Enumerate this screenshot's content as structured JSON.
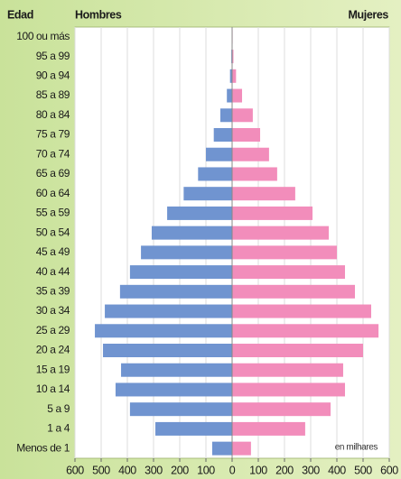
{
  "chart_data": {
    "type": "pyramid",
    "header": "Edad",
    "annotation": "en milhares",
    "categories": [
      "100 ou más",
      "95 a 99",
      "90 a 94",
      "85 a 89",
      "80 a 84",
      "75 a 79",
      "70 a 74",
      "65 a 69",
      "60 a 64",
      "55 a 59",
      "50 a 54",
      "45 a 49",
      "40 a 44",
      "35 a 39",
      "30 a 34",
      "25 a 29",
      "20 a 24",
      "15 a 19",
      "10 a 14",
      "5 a 9",
      "1 a 4",
      "Menos de 1"
    ],
    "series": [
      {
        "name": "Hombres",
        "color": "#7094d0",
        "values": [
          -1,
          -3,
          -8,
          -20,
          -45,
          -70,
          -100,
          -130,
          -185,
          -248,
          -307,
          -348,
          -390,
          -428,
          -486,
          -524,
          -493,
          -424,
          -445,
          -390,
          -293,
          -76
        ]
      },
      {
        "name": "Mujeres",
        "color": "#f28dbb",
        "values": [
          2,
          5,
          15,
          38,
          79,
          107,
          141,
          172,
          241,
          307,
          369,
          400,
          431,
          469,
          531,
          559,
          500,
          424,
          431,
          376,
          279,
          72
        ]
      }
    ],
    "xlim": [
      -600,
      600
    ],
    "xticks": [
      {
        "value": -600,
        "label": "600"
      },
      {
        "value": -500,
        "label": "500"
      },
      {
        "value": -400,
        "label": "400"
      },
      {
        "value": -300,
        "label": "300"
      },
      {
        "value": -200,
        "label": "200"
      },
      {
        "value": -100,
        "label": "100"
      },
      0,
      100,
      200,
      300,
      400,
      500,
      600
    ],
    "grid": true
  }
}
